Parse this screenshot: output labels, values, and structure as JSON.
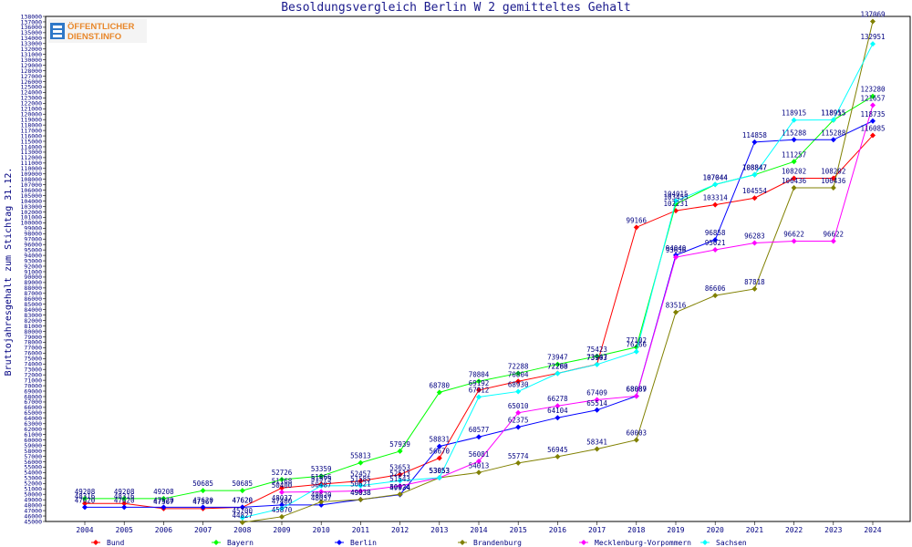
{
  "chart_data": {
    "type": "line",
    "title": "Besoldungsvergleich Berlin W 2 gemitteltes Gehalt",
    "ylabel": "Bruttojahresgehalt zum Stichtag 31.12.",
    "xlabel": "",
    "ylim": [
      45000,
      138000
    ],
    "y_tick_step": 1000,
    "grid": false,
    "legend_position": "bottom",
    "logo_text": [
      "ÖFFENTLICHER",
      "DIENST.INFO"
    ],
    "x": [
      "2004",
      "2005",
      "2006",
      "2007",
      "2008",
      "2009",
      "2010",
      "2011",
      "2012",
      "2013",
      "2014",
      "2015",
      "2016",
      "2017",
      "2018",
      "2019",
      "2020",
      "2021",
      "2022",
      "2023",
      "2024"
    ],
    "series": [
      {
        "name": "Bund",
        "color": "#ff0000",
        "values": [
          48316,
          48316,
          47367,
          47367,
          47620,
          51168,
          51866,
          52457,
          53653,
          56670,
          69192,
          70804,
          72288,
          73947,
          99166,
          102231,
          103314,
          104554,
          108202,
          108202,
          116085
        ]
      },
      {
        "name": "Bayern",
        "color": "#00ff00",
        "values": [
          49208,
          49208,
          49208,
          50685,
          50685,
          52726,
          53359,
          55813,
          57939,
          68780,
          70804,
          72288,
          73947,
          75423,
          77102,
          103455,
          107044,
          108847,
          111257,
          118915,
          123280
        ]
      },
      {
        "name": "Berlin",
        "color": "#0000ff",
        "values": [
          47620,
          47620,
          47620,
          47620,
          47620,
          48037,
          48037,
          49038,
          49934,
          58831,
          60577,
          62375,
          64104,
          65514,
          68089,
          94040,
          96858,
          114858,
          115288,
          115288,
          118735
        ]
      },
      {
        "name": "Brandenburg",
        "color": "#808000",
        "values": [
          null,
          null,
          null,
          null,
          44827,
          45870,
          48620,
          49038,
          50024,
          53053,
          54013,
          55774,
          56945,
          58341,
          60003,
          83516,
          86606,
          87818,
          106436,
          106436,
          137069
        ]
      },
      {
        "name": "Mecklenburg-Vorpommern",
        "color": "#ff00ff",
        "values": [
          null,
          null,
          null,
          null,
          null,
          50400,
          50487,
          50621,
          51543,
          53053,
          56081,
          65010,
          66278,
          67409,
          68087,
          93656,
          95021,
          96283,
          96622,
          96622,
          121657
        ]
      },
      {
        "name": "Sachsen",
        "color": "#00ffff",
        "values": [
          null,
          null,
          null,
          null,
          45700,
          47400,
          51575,
          51585,
          52513,
          53053,
          67912,
          68930,
          72260,
          73903,
          76266,
          104015,
          107044,
          108847,
          118915,
          118955,
          132951
        ]
      }
    ]
  }
}
